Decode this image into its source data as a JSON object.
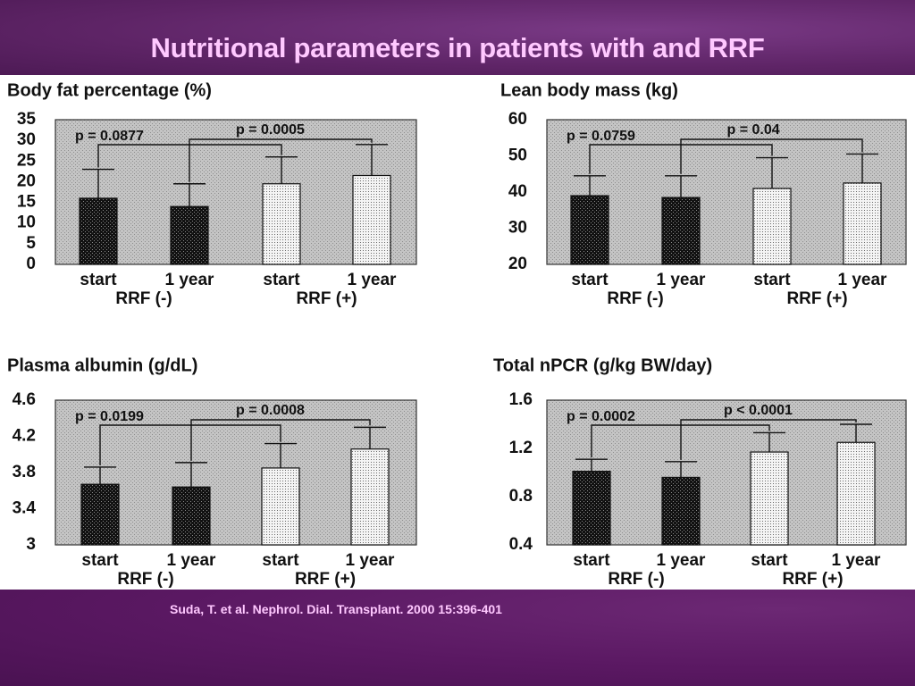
{
  "slide": {
    "title": "Nutritional parameters in patients with and RRF",
    "citation": "Suda, T. et al. Nephrol. Dial. Transplant. 2000 15:396-401"
  },
  "chart_data": [
    {
      "type": "bar",
      "title": "Body fat percentage (%)",
      "categories": [
        "start",
        "1 year",
        "start",
        "1 year"
      ],
      "groups": [
        "RRF (-)",
        "RRF (+)"
      ],
      "values": [
        16,
        14,
        19.5,
        21.5
      ],
      "error_upper": [
        23,
        19.5,
        26,
        29
      ],
      "ylim": [
        0,
        35
      ],
      "yticks": [
        "35",
        "30",
        "25",
        "20",
        "15",
        "10",
        "5",
        "0"
      ],
      "comparisons": [
        {
          "label": "p = 0.0877",
          "from": 0,
          "to": 2
        },
        {
          "label": "p = 0.0005",
          "from": 1,
          "to": 3
        }
      ]
    },
    {
      "type": "bar",
      "title": "Lean body mass (kg)",
      "categories": [
        "start",
        "1 year",
        "start",
        "1 year"
      ],
      "groups": [
        "RRF (-)",
        "RRF (+)"
      ],
      "values": [
        39,
        38.5,
        41,
        42.5
      ],
      "error_upper": [
        44.5,
        44.5,
        49.5,
        50.5
      ],
      "ylim": [
        20,
        60
      ],
      "yticks": [
        "60",
        "50",
        "40",
        "30",
        "20"
      ],
      "comparisons": [
        {
          "label": "p = 0.0759",
          "from": 0,
          "to": 2
        },
        {
          "label": "p = 0.04",
          "from": 1,
          "to": 3
        }
      ]
    },
    {
      "type": "bar",
      "title": "Plasma albumin (g/dL)",
      "categories": [
        "start",
        "1 year",
        "start",
        "1 year"
      ],
      "groups": [
        "RRF (-)",
        "RRF (+)"
      ],
      "values": [
        3.67,
        3.64,
        3.85,
        4.06
      ],
      "error_upper": [
        3.86,
        3.91,
        4.12,
        4.3
      ],
      "ylim": [
        3,
        4.6
      ],
      "yticks": [
        "4.6",
        "4.2",
        "3.8",
        "3.4",
        "3"
      ],
      "comparisons": [
        {
          "label": "p = 0.0199",
          "from": 0,
          "to": 2
        },
        {
          "label": "p = 0.0008",
          "from": 1,
          "to": 3
        }
      ]
    },
    {
      "type": "bar",
      "title": "Total nPCR (g/kg BW/day)",
      "categories": [
        "start",
        "1 year",
        "start",
        "1 year"
      ],
      "groups": [
        "RRF (-)",
        "RRF (+)"
      ],
      "values": [
        1.01,
        0.96,
        1.17,
        1.25
      ],
      "error_upper": [
        1.11,
        1.09,
        1.33,
        1.4
      ],
      "ylim": [
        0.4,
        1.6
      ],
      "yticks": [
        "1.6",
        "1.2",
        "0.8",
        "0.4"
      ],
      "comparisons": [
        {
          "label": "p = 0.0002",
          "from": 0,
          "to": 2
        },
        {
          "label": "p < 0.0001",
          "from": 1,
          "to": 3
        }
      ]
    }
  ]
}
